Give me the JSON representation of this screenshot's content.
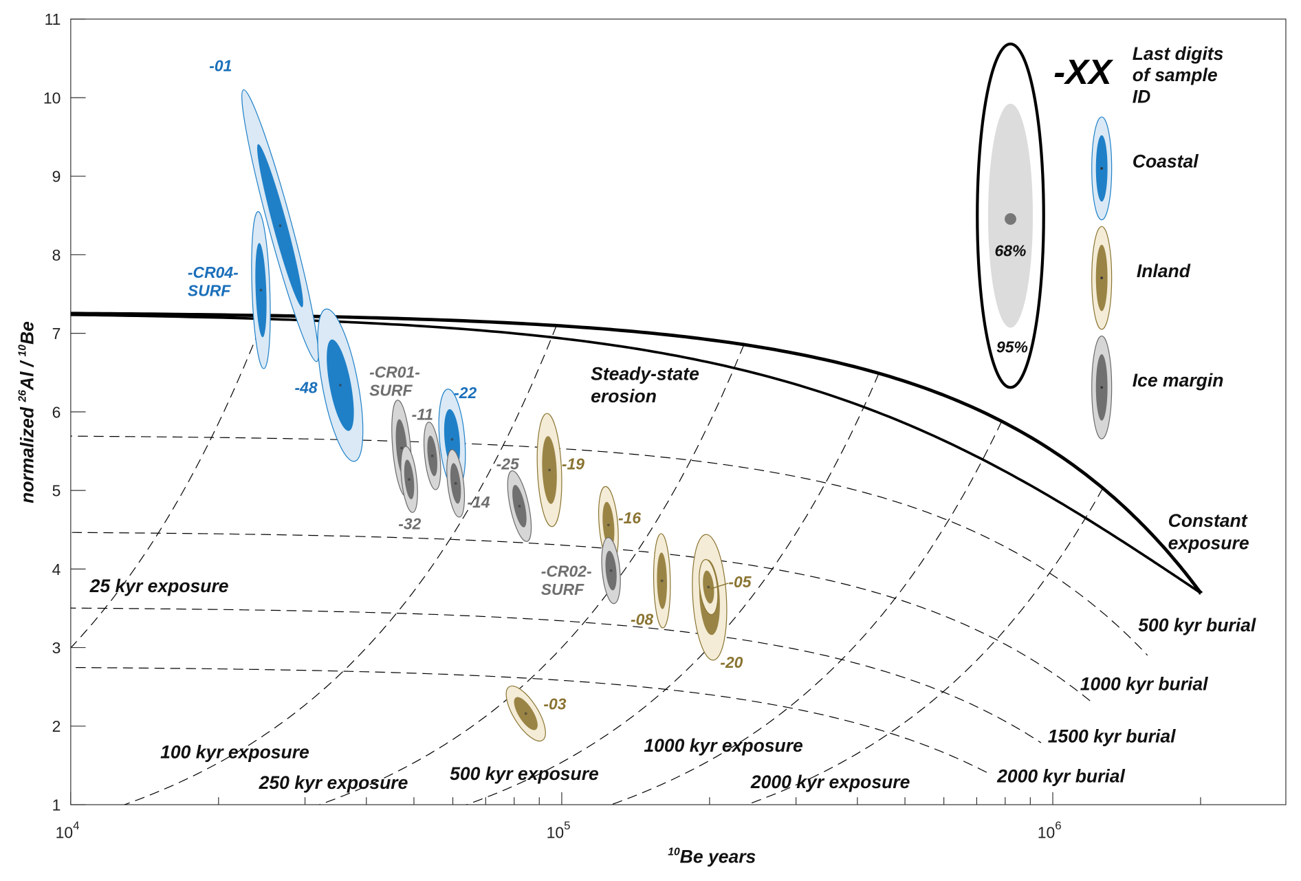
{
  "chart_data": {
    "type": "scatter",
    "xlabel_sup": "10",
    "xlabel": "Be years",
    "ylabel_prefix": "normalized ",
    "ylabel_sup1": "26",
    "ylabel_mid": "Al / ",
    "ylabel_sup2": "10",
    "ylabel_end": "Be",
    "xscale": "log",
    "xlim": [
      10000,
      3000000
    ],
    "ylim": [
      1,
      11
    ],
    "grid": false,
    "yticks": [
      "1",
      "2",
      "3",
      "4",
      "5",
      "6",
      "7",
      "8",
      "9",
      "10",
      "11"
    ],
    "xticks": [
      {
        "base": "10",
        "exp": "4"
      },
      {
        "base": "10",
        "exp": "5"
      },
      {
        "base": "10",
        "exp": "6"
      }
    ],
    "curves": {
      "constant_exposure": [
        "Constant",
        "exposure"
      ],
      "steady_state_erosion": [
        "Steady-state",
        "erosion"
      ]
    },
    "exposure_lines": [
      {
        "kyr": 25,
        "label": "25 kyr exposure"
      },
      {
        "kyr": 100,
        "label": "100 kyr exposure"
      },
      {
        "kyr": 250,
        "label": "250 kyr exposure"
      },
      {
        "kyr": 500,
        "label": "500 kyr exposure"
      },
      {
        "kyr": 1000,
        "label": "1000 kyr exposure"
      },
      {
        "kyr": 2000,
        "label": "2000 kyr exposure"
      }
    ],
    "burial_lines": [
      {
        "kyr": 500,
        "label": "500 kyr burial"
      },
      {
        "kyr": 1000,
        "label": "1000 kyr burial"
      },
      {
        "kyr": 1500,
        "label": "1500 kyr burial"
      },
      {
        "kyr": 2000,
        "label": "2000 kyr burial"
      }
    ],
    "groups": {
      "coastal": {
        "name": "Coastal",
        "fill": "#1f80c8",
        "halo": "#dae9f5",
        "stroke": "#1f80c8",
        "text": "#1a6fba"
      },
      "inland": {
        "name": "Inland",
        "fill": "#9a8445",
        "halo": "#f4ecd6",
        "stroke": "#8a7432",
        "text": "#8a7432"
      },
      "ice": {
        "name": "Ice margin",
        "fill": "#707070",
        "halo": "#d6d6d6",
        "stroke": "#6a6a6a",
        "text": "#6e6e6e"
      }
    },
    "samples": [
      {
        "label": [
          "-01"
        ],
        "group": "coastal",
        "be_years": 26700,
        "ratio": 8.37,
        "log_be_err95": 0.078,
        "ratio_err95": 1.73,
        "rho": -0.95
      },
      {
        "label": [
          "-CR04-",
          "SURF"
        ],
        "group": "coastal",
        "be_years": 24400,
        "ratio": 7.55,
        "log_be_err95": 0.019,
        "ratio_err95": 1.0,
        "rho": -0.3
      },
      {
        "label": [
          "-48"
        ],
        "group": "coastal",
        "be_years": 35400,
        "ratio": 6.34,
        "log_be_err95": 0.046,
        "ratio_err95": 0.97,
        "rho": -0.6
      },
      {
        "label": [
          "-CR01-",
          "SURF"
        ],
        "group": "ice",
        "be_years": 47200,
        "ratio": 5.54,
        "log_be_err95": 0.02,
        "ratio_err95": 0.61,
        "rho": -0.4
      },
      {
        "label": [
          "-32"
        ],
        "group": "ice",
        "be_years": 48900,
        "ratio": 5.14,
        "log_be_err95": 0.017,
        "ratio_err95": 0.42,
        "rho": -0.4
      },
      {
        "label": [
          "-11"
        ],
        "group": "ice",
        "be_years": 54500,
        "ratio": 5.44,
        "log_be_err95": 0.017,
        "ratio_err95": 0.43,
        "rho": -0.4
      },
      {
        "label": [
          "-22"
        ],
        "group": "coastal",
        "be_years": 59800,
        "ratio": 5.65,
        "log_be_err95": 0.027,
        "ratio_err95": 0.64,
        "rho": -0.3
      },
      {
        "label": [
          "-14"
        ],
        "group": "ice",
        "be_years": 60800,
        "ratio": 5.09,
        "log_be_err95": 0.018,
        "ratio_err95": 0.43,
        "rho": -0.4
      },
      {
        "label": [
          "-25"
        ],
        "group": "ice",
        "be_years": 82000,
        "ratio": 4.8,
        "log_be_err95": 0.024,
        "ratio_err95": 0.45,
        "rho": -0.6
      },
      {
        "label": [
          "-19"
        ],
        "group": "inland",
        "be_years": 94400,
        "ratio": 5.26,
        "log_be_err95": 0.025,
        "ratio_err95": 0.72,
        "rho": -0.2
      },
      {
        "label": [
          "-16"
        ],
        "group": "inland",
        "be_years": 124500,
        "ratio": 4.56,
        "log_be_err95": 0.02,
        "ratio_err95": 0.49,
        "rho": -0.3
      },
      {
        "label": [
          "-CR02-",
          "SURF"
        ],
        "group": "ice",
        "be_years": 126000,
        "ratio": 3.98,
        "log_be_err95": 0.019,
        "ratio_err95": 0.42,
        "rho": -0.3
      },
      {
        "label": [
          "-08"
        ],
        "group": "inland",
        "be_years": 160000,
        "ratio": 3.85,
        "log_be_err95": 0.017,
        "ratio_err95": 0.6,
        "rho": -0.1
      },
      {
        "label": [
          "-20"
        ],
        "group": "inland",
        "be_years": 200000,
        "ratio": 3.64,
        "log_be_err95": 0.035,
        "ratio_err95": 0.8,
        "rho": -0.2
      },
      {
        "label": [
          "-05"
        ],
        "group": "inland",
        "be_years": 199000,
        "ratio": 3.77,
        "log_be_err95": 0.019,
        "ratio_err95": 0.35,
        "rho": -0.3
      },
      {
        "label": [
          "-03"
        ],
        "group": "inland",
        "be_years": 84500,
        "ratio": 2.16,
        "log_be_err95": 0.04,
        "ratio_err95": 0.35,
        "rho": -0.7
      }
    ],
    "legend": {
      "placement": "top-right",
      "id_symbol": "-XX",
      "id_text": [
        "Last digits",
        "of sample",
        "ID"
      ],
      "inner_pct": "68%",
      "outer_pct": "95%"
    }
  }
}
